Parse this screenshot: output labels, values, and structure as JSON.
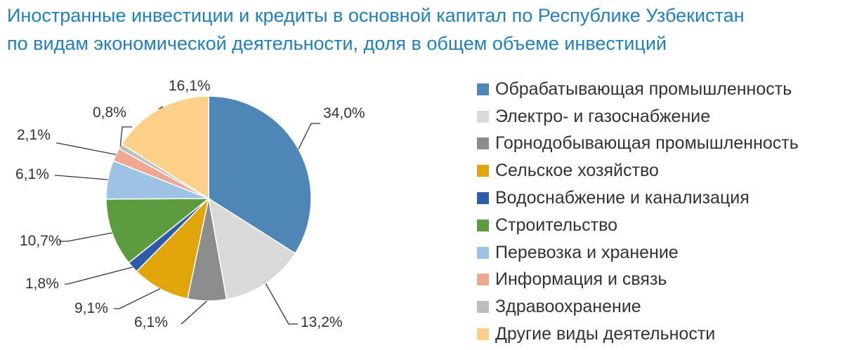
{
  "title": {
    "line1": "Иностранные инвестиции и кредиты в основной капитал по Республике Узбекистан",
    "line2": "по видам экономической деятельности, доля в общем объеме инвестиций"
  },
  "chart_data": {
    "type": "pie",
    "title": "Иностранные инвестиции и кредиты в основной капитал по Республике Узбекистан по видам экономической деятельности, доля в общем объеме инвестиций",
    "legend_position": "right",
    "slices": [
      {
        "label": "Обрабатывающая промышленность",
        "value": 34.0,
        "display": "34,0%",
        "color": "#4f86b8"
      },
      {
        "label": "Электро- и газоснабжение",
        "value": 13.2,
        "display": "13,2%",
        "color": "#d9d9d9"
      },
      {
        "label": "Горнодобывающая промышленность",
        "value": 6.1,
        "display": "6,1%",
        "color": "#8c8c8c"
      },
      {
        "label": "Сельское хозяйство",
        "value": 9.1,
        "display": "9,1%",
        "color": "#dfa50a"
      },
      {
        "label": "Водоснабжение и канализация",
        "value": 1.8,
        "display": "1,8%",
        "color": "#2e5ca8"
      },
      {
        "label": "Строительство",
        "value": 10.7,
        "display": "10,7%",
        "color": "#5c9b3e"
      },
      {
        "label": "Перевозка и хранение",
        "value": 6.1,
        "display": "6,1%",
        "color": "#9dc2e6"
      },
      {
        "label": "Информация и связь",
        "value": 2.1,
        "display": "2,1%",
        "color": "#eea891"
      },
      {
        "label": "Здравоохранение",
        "value": 0.8,
        "display": "0,8%",
        "color": "#bdbdbd"
      },
      {
        "label": "Другие виды деятельности",
        "value": 16.1,
        "display": "16,1%",
        "color": "#fdd08a"
      }
    ]
  }
}
